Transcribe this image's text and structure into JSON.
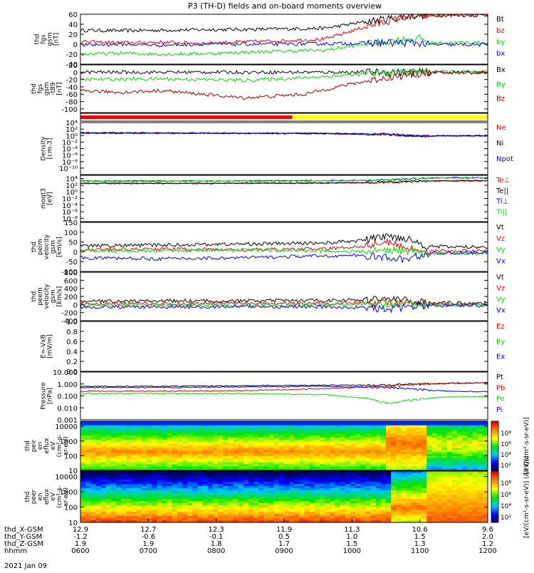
{
  "title": "P3 (TH-D) fields and on-board moments overview",
  "date_label": "2021 Jan 09",
  "colors": {
    "black": "#000000",
    "red": "#ee0000",
    "green": "#00dd00",
    "blue": "#0000ee",
    "darkred": "#990000",
    "yellow": "#ffff00",
    "purple": "#aa00aa"
  },
  "time_axis": {
    "row_labels": [
      "thd_X-GSM",
      "thd_Y-GSM",
      "thd_Z-GSM",
      "hhmm"
    ],
    "columns": [
      {
        "x": "12.9",
        "y": "-1.2",
        "z": "1.9",
        "t": "0600"
      },
      {
        "x": "12.7",
        "y": "-0.6",
        "z": "1.9",
        "t": "0700"
      },
      {
        "x": "12.3",
        "y": "-0.1",
        "z": "1.8",
        "t": "0800"
      },
      {
        "x": "11.9",
        "y": "0.5",
        "z": "1.7",
        "t": "0900"
      },
      {
        "x": "11.3",
        "y": "1.0",
        "z": "1.5",
        "t": "1000"
      },
      {
        "x": "10.6",
        "y": "1.5",
        "z": "1.3",
        "t": "1100"
      },
      {
        "x": "9.6",
        "y": "2.0",
        "z": "1.2",
        "t": "1200"
      }
    ]
  },
  "chart_data": [
    {
      "type": "line",
      "title": "",
      "ylabel": [
        "thd",
        "fgs",
        "gsm",
        "[nT]"
      ],
      "ylim": [
        -40,
        60
      ],
      "ticks": [
        "60",
        "40",
        "20",
        "0",
        "-20",
        "-40"
      ],
      "tick_values": [
        60,
        40,
        20,
        0,
        -20,
        -40
      ],
      "series": [
        {
          "name": "Bt",
          "color": "#000000",
          "x": [
            0,
            0.1,
            0.2,
            0.3,
            0.45,
            0.6,
            0.7,
            0.8,
            0.84,
            0.85,
            0.9,
            1.0
          ],
          "y": [
            28,
            27,
            28,
            29,
            30,
            32,
            45,
            56,
            58,
            57,
            58,
            58
          ]
        },
        {
          "name": "bz",
          "color": "#ee0000",
          "x": [
            0,
            0.1,
            0.2,
            0.3,
            0.45,
            0.6,
            0.7,
            0.8,
            0.84,
            0.85,
            0.9,
            1.0
          ],
          "y": [
            5,
            3,
            4,
            2,
            6,
            10,
            35,
            55,
            57,
            57,
            58,
            58
          ]
        },
        {
          "name": "by",
          "color": "#00dd00",
          "x": [
            0,
            0.1,
            0.2,
            0.3,
            0.45,
            0.6,
            0.7,
            0.8,
            0.84,
            0.85,
            0.9,
            1.0
          ],
          "y": [
            -20,
            -18,
            -20,
            -19,
            -15,
            -12,
            0,
            10,
            12,
            2,
            3,
            3
          ]
        },
        {
          "name": "bx",
          "color": "#0000ee",
          "x": [
            0,
            0.1,
            0.2,
            0.3,
            0.45,
            0.6,
            0.7,
            0.8,
            0.84,
            0.85,
            0.9,
            1.0
          ],
          "y": [
            -2,
            0,
            -2,
            0,
            0,
            1,
            2,
            3,
            2,
            -1,
            -1,
            -1
          ]
        }
      ]
    },
    {
      "type": "line",
      "title": "",
      "ylabel": [
        "thd",
        "fgs",
        "gsm",
        "-t89",
        "[nT]"
      ],
      "ylim": [
        -110,
        20
      ],
      "ticks": [
        "20",
        "0",
        "-20",
        "-40",
        "-60",
        "-80",
        "-100"
      ],
      "tick_values": [
        20,
        0,
        -20,
        -40,
        -60,
        -80,
        -100
      ],
      "series": [
        {
          "name": "Bx",
          "color": "#000000",
          "x": [
            0,
            0.2,
            0.4,
            0.6,
            0.75,
            0.85,
            1.0
          ],
          "y": [
            0,
            0,
            0,
            0,
            0,
            0,
            0
          ]
        },
        {
          "name": "By",
          "color": "#00dd00",
          "x": [
            0,
            0.2,
            0.4,
            0.55,
            0.7,
            0.8,
            0.85,
            1.0
          ],
          "y": [
            -20,
            -18,
            -22,
            -15,
            -5,
            0,
            2,
            0
          ]
        },
        {
          "name": "Bz",
          "color": "#990000",
          "x": [
            0,
            0.1,
            0.2,
            0.3,
            0.4,
            0.55,
            0.65,
            0.75,
            0.85,
            1.0
          ],
          "y": [
            -50,
            -55,
            -50,
            -60,
            -70,
            -60,
            -35,
            -15,
            -2,
            -1
          ]
        }
      ]
    },
    {
      "type": "bar",
      "title": "",
      "ylabel": [],
      "ylim": [
        0,
        1
      ],
      "ticks": [],
      "tick_values": [],
      "series": [
        {
          "name": "",
          "color": "#ee0000",
          "x": [
            0,
            0.52
          ],
          "y": [
            1,
            1
          ]
        },
        {
          "name": "",
          "color": "#ffff00",
          "x": [
            0.52,
            1.0
          ],
          "y": [
            1,
            1
          ]
        }
      ]
    },
    {
      "type": "line",
      "title": "",
      "ylabel": [
        "Density",
        "[cm-3]"
      ],
      "ylim": [
        -12,
        4
      ],
      "log": true,
      "ticks": [
        "10⁴",
        "10²",
        "10⁰",
        "10⁻²",
        "10⁻⁴",
        "10⁻⁶",
        "10⁻⁸",
        "10⁻¹⁰"
      ],
      "tick_values": [
        4,
        2,
        0,
        -2,
        -4,
        -6,
        -8,
        -10
      ],
      "series": [
        {
          "name": "Ne",
          "color": "#ee0000",
          "x": [
            0,
            0.3,
            0.6,
            0.75,
            0.8,
            0.85,
            0.9,
            1.0
          ],
          "y": [
            0.8,
            0.7,
            0.6,
            0.4,
            0,
            -0.2,
            -0.1,
            -0.1
          ]
        },
        {
          "name": "Ni",
          "color": "#000000",
          "x": [
            0,
            0.3,
            0.6,
            0.75,
            0.8,
            0.85,
            0.9,
            1.0
          ],
          "y": [
            0.9,
            0.8,
            0.7,
            0.5,
            0.1,
            -0.1,
            0,
            0
          ]
        },
        {
          "name": "Npot",
          "color": "#0000ee",
          "x": [
            0,
            0.3,
            0.6,
            0.75,
            0.8,
            0.85,
            0.9,
            1.0
          ],
          "y": [
            0.7,
            0.7,
            0.6,
            0.3,
            0,
            -0.2,
            -0.1,
            -0.1
          ]
        }
      ]
    },
    {
      "type": "line",
      "title": "",
      "ylabel": [
        "moqt3",
        "[eV]"
      ],
      "ylim": [
        -9,
        5
      ],
      "log": true,
      "ticks": [
        "10⁴",
        "10²",
        "10⁰",
        "10⁻²",
        "10⁻⁴",
        "10⁻⁶",
        "10⁻⁸"
      ],
      "tick_values": [
        4,
        2,
        0,
        -2,
        -4,
        -6,
        -8
      ],
      "series": [
        {
          "name": "Te⊥",
          "color": "#ee0000",
          "x": [
            0,
            0.3,
            0.6,
            0.75,
            0.85,
            0.9,
            1.0
          ],
          "y": [
            2.5,
            2.5,
            2.6,
            2.8,
            3.2,
            3.3,
            3.3
          ]
        },
        {
          "name": "Te||",
          "color": "#000000",
          "x": [
            0,
            0.3,
            0.6,
            0.75,
            0.85,
            0.9,
            1.0
          ],
          "y": [
            2.6,
            2.6,
            2.7,
            2.9,
            3.3,
            3.4,
            3.4
          ]
        },
        {
          "name": "Ti⊥",
          "color": "#0000ee",
          "x": [
            0,
            0.3,
            0.6,
            0.75,
            0.85,
            0.9,
            1.0
          ],
          "y": [
            3.3,
            3.3,
            3.4,
            3.6,
            4.2,
            4.3,
            4.3
          ]
        },
        {
          "name": "Ti||",
          "color": "#00dd00",
          "x": [
            0,
            0.3,
            0.6,
            0.75,
            0.85,
            0.9,
            1.0
          ],
          "y": [
            3.2,
            3.2,
            3.3,
            3.5,
            4.1,
            4.2,
            4.2
          ]
        }
      ]
    },
    {
      "type": "line",
      "title": "",
      "ylabel": [
        "thd",
        "peim",
        "velocity",
        "gsm",
        "[km/s]"
      ],
      "ylim": [
        -100,
        150
      ],
      "ticks": [
        "150",
        "100",
        "50",
        "0",
        "-50",
        "-100"
      ],
      "tick_values": [
        150,
        100,
        50,
        0,
        -50,
        -100
      ],
      "series": [
        {
          "name": "Vt",
          "color": "#000000",
          "x": [
            0,
            0.2,
            0.4,
            0.6,
            0.7,
            0.75,
            0.8,
            0.85,
            0.9,
            1.0
          ],
          "y": [
            30,
            35,
            40,
            45,
            60,
            80,
            70,
            30,
            25,
            25
          ]
        },
        {
          "name": "Vz",
          "color": "#ee0000",
          "x": [
            0,
            0.2,
            0.4,
            0.6,
            0.7,
            0.75,
            0.8,
            0.85,
            0.9,
            1.0
          ],
          "y": [
            10,
            15,
            10,
            15,
            30,
            50,
            20,
            5,
            5,
            5
          ]
        },
        {
          "name": "Vy",
          "color": "#00dd00",
          "x": [
            0,
            0.2,
            0.4,
            0.6,
            0.7,
            0.75,
            0.8,
            0.85,
            0.9,
            1.0
          ],
          "y": [
            5,
            5,
            10,
            5,
            0,
            10,
            5,
            -10,
            -5,
            -5
          ]
        },
        {
          "name": "Vx",
          "color": "#0000ee",
          "x": [
            0,
            0.2,
            0.4,
            0.6,
            0.7,
            0.75,
            0.8,
            0.85,
            0.9,
            1.0
          ],
          "y": [
            -30,
            -35,
            -30,
            -20,
            -20,
            -30,
            -40,
            -10,
            -5,
            -5
          ]
        }
      ]
    },
    {
      "type": "line",
      "title": "",
      "ylabel": [
        "thd",
        "peem",
        "velocity",
        "gsm",
        "[km/s]"
      ],
      "ylim": [
        -400,
        800
      ],
      "ticks": [
        "800",
        "600",
        "400",
        "200",
        "0",
        "-200",
        "-400"
      ],
      "tick_values": [
        800,
        600,
        400,
        200,
        0,
        -200,
        -400
      ],
      "series": [
        {
          "name": "Vt",
          "color": "#000000",
          "x": [
            0,
            0.2,
            0.4,
            0.6,
            0.7,
            0.75,
            0.8,
            0.85,
            0.9,
            1.0
          ],
          "y": [
            80,
            90,
            90,
            100,
            120,
            150,
            100,
            50,
            40,
            40
          ]
        },
        {
          "name": "Vz",
          "color": "#ee0000",
          "x": [
            0,
            0.2,
            0.4,
            0.6,
            0.7,
            0.75,
            0.8,
            0.85,
            0.9,
            1.0
          ],
          "y": [
            20,
            20,
            30,
            30,
            40,
            50,
            30,
            10,
            10,
            10
          ]
        },
        {
          "name": "Vy",
          "color": "#00dd00",
          "x": [
            0,
            0.2,
            0.4,
            0.6,
            0.7,
            0.75,
            0.8,
            0.85,
            0.9,
            1.0
          ],
          "y": [
            -20,
            -10,
            -20,
            -10,
            0,
            10,
            0,
            -10,
            -5,
            -5
          ]
        },
        {
          "name": "Vx",
          "color": "#0000ee",
          "x": [
            0,
            0.2,
            0.4,
            0.6,
            0.7,
            0.75,
            0.8,
            0.85,
            0.9,
            1.0
          ],
          "y": [
            -60,
            -60,
            -50,
            -60,
            -80,
            -120,
            -60,
            -30,
            -20,
            -20
          ]
        }
      ]
    },
    {
      "type": "line",
      "title": "",
      "ylabel": [
        "E=-VxB",
        "[mV/m]"
      ],
      "ylim": [
        0,
        1
      ],
      "ticks": [
        "1.0",
        "0.8",
        "0.6",
        "0.4",
        "0.2",
        "0.0"
      ],
      "tick_values": [
        1,
        0.8,
        0.6,
        0.4,
        0.2,
        0
      ],
      "series": [
        {
          "name": "Ez",
          "color": "#ee0000",
          "x": [],
          "y": []
        },
        {
          "name": "Ey",
          "color": "#00dd00",
          "x": [],
          "y": []
        },
        {
          "name": "Ex",
          "color": "#0000ee",
          "x": [],
          "y": []
        }
      ]
    },
    {
      "type": "line",
      "title": "",
      "ylabel": [
        "Pressure",
        "[nPa]"
      ],
      "ylim": [
        -3,
        1
      ],
      "log": true,
      "ticks": [
        "10.000",
        "1.000",
        "0.100",
        "0.010",
        "0.001"
      ],
      "tick_values": [
        1,
        0,
        -1,
        -2,
        -3
      ],
      "series": [
        {
          "name": "Pt",
          "color": "#000000",
          "x": [
            0,
            0.2,
            0.4,
            0.6,
            0.75,
            0.85,
            0.9,
            1.0
          ],
          "y": [
            -0.2,
            -0.2,
            -0.15,
            -0.1,
            -0.1,
            0,
            0.05,
            0.1
          ]
        },
        {
          "name": "Pb",
          "color": "#ee0000",
          "x": [
            0,
            0.2,
            0.4,
            0.6,
            0.75,
            0.85,
            0.9,
            1.0
          ],
          "y": [
            -0.6,
            -0.6,
            -0.55,
            -0.4,
            -0.2,
            0,
            0.05,
            0.1
          ]
        },
        {
          "name": "Pe",
          "color": "#00dd00",
          "x": [
            0,
            0.2,
            0.4,
            0.6,
            0.7,
            0.75,
            0.8,
            0.85,
            0.9,
            1.0
          ],
          "y": [
            -0.8,
            -0.8,
            -0.8,
            -0.9,
            -1.2,
            -1.6,
            -1.4,
            -1.2,
            -1.1,
            -1.05
          ]
        },
        {
          "name": "Pi",
          "color": "#0000ee",
          "x": [
            0,
            0.2,
            0.4,
            0.6,
            0.75,
            0.85,
            0.9,
            1.0
          ],
          "y": [
            -0.3,
            -0.3,
            -0.25,
            -0.2,
            -0.3,
            -0.5,
            -0.6,
            -0.65
          ]
        }
      ]
    },
    {
      "type": "heatmap",
      "title": "",
      "ylabel": [
        "thd",
        "peir",
        "en",
        "eflux",
        "eV",
        "(cm²-s-",
        "sr-eV)"
      ],
      "ticks": [
        "10000",
        "1000",
        "100",
        "10"
      ],
      "tick_values": [
        4,
        3,
        2,
        1
      ],
      "ylim": [
        1,
        4.35
      ],
      "colorbar": {
        "ticks": [
          "10⁸",
          "10⁶",
          "10⁴",
          "10²"
        ],
        "label": "[eV/(cm²-s-sr-eV)]"
      }
    },
    {
      "type": "heatmap",
      "title": "",
      "ylabel": [
        "thd",
        "peer",
        "en",
        "eflux",
        "eV",
        "(cm²-s-",
        "sr-eV)"
      ],
      "ticks": [
        "10000",
        "1000",
        "100",
        "10"
      ],
      "tick_values": [
        4,
        3,
        2,
        1
      ],
      "ylim": [
        1,
        4.35
      ],
      "colorbar": {
        "ticks": [
          "10⁸",
          "10⁶",
          "10⁴",
          "10²"
        ],
        "label": "[eV/(cm²-s-sr-eV)] (All Qs)"
      }
    }
  ]
}
